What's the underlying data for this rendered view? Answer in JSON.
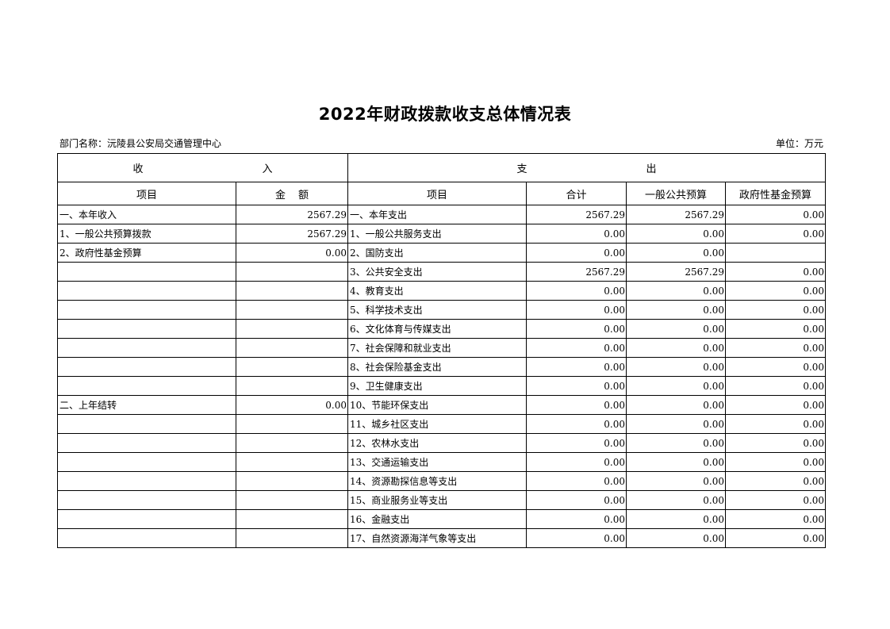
{
  "title": "2022年财政拨款收支总体情况表",
  "department": "部门名称：沅陵县公安局交通管理中心",
  "unit": "单位：万元",
  "header": {
    "income": [
      "收",
      "入"
    ],
    "expense": [
      "支",
      "出"
    ],
    "columns": [
      "项目",
      "金",
      "额",
      "项目",
      "合计",
      "一般公共预算",
      "政府性基金预算"
    ]
  },
  "rows": [
    [
      "一、本年收入",
      "2567.29",
      "一、本年支出",
      "2567.29",
      "2567.29",
      "0.00"
    ],
    [
      "1、一般公共预算拨款",
      "2567.29",
      "1、一般公共服务支出",
      "0.00",
      "0.00",
      "0.00"
    ],
    [
      "2、政府性基金预算",
      "0.00",
      "2、国防支出",
      "0.00",
      "0.00",
      ""
    ],
    [
      "",
      "",
      "3、公共安全支出",
      "2567.29",
      "2567.29",
      "0.00"
    ],
    [
      "",
      "",
      "4、教育支出",
      "0.00",
      "0.00",
      "0.00"
    ],
    [
      "",
      "",
      "5、科学技术支出",
      "0.00",
      "0.00",
      "0.00"
    ],
    [
      "",
      "",
      "6、文化体育与传媒支出",
      "0.00",
      "0.00",
      "0.00"
    ],
    [
      "",
      "",
      "7、社会保障和就业支出",
      "0.00",
      "0.00",
      "0.00"
    ],
    [
      "",
      "",
      "8、社会保险基金支出",
      "0.00",
      "0.00",
      "0.00"
    ],
    [
      "",
      "",
      "9、卫生健康支出",
      "0.00",
      "0.00",
      "0.00"
    ],
    [
      "二、上年结转",
      "0.00",
      "10、节能环保支出",
      "0.00",
      "0.00",
      "0.00"
    ],
    [
      "",
      "",
      "11、城乡社区支出",
      "0.00",
      "0.00",
      "0.00"
    ],
    [
      "",
      "",
      "12、农林水支出",
      "0.00",
      "0.00",
      "0.00"
    ],
    [
      "",
      "",
      "13、交通运输支出",
      "0.00",
      "0.00",
      "0.00"
    ],
    [
      "",
      "",
      "14、资源勘探信息等支出",
      "0.00",
      "0.00",
      "0.00"
    ],
    [
      "",
      "",
      "15、商业服务业等支出",
      "0.00",
      "0.00",
      "0.00"
    ],
    [
      "",
      "",
      "16、金融支出",
      "0.00",
      "0.00",
      "0.00"
    ],
    [
      "",
      "",
      "17、自然资源海洋气象等支出",
      "0.00",
      "0.00",
      "0.00"
    ]
  ]
}
